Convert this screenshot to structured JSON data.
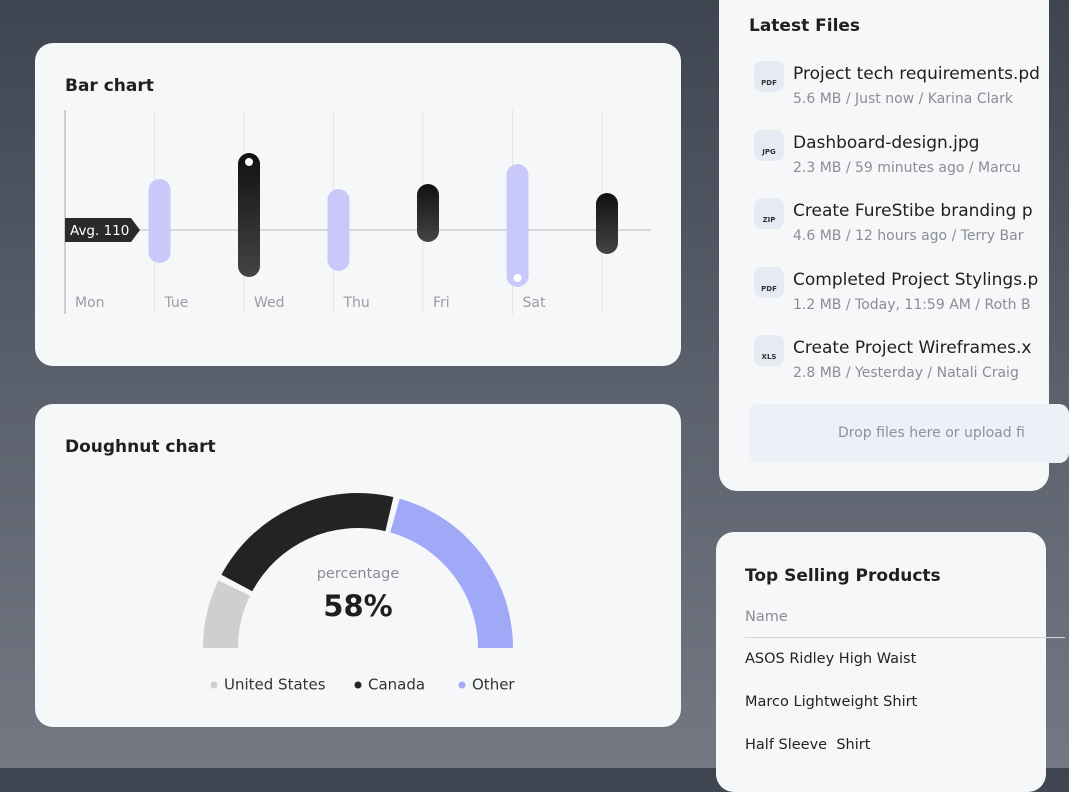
{
  "chart_data": [
    {
      "type": "rangebar",
      "title": "Bar chart",
      "categories": [
        "Mon",
        "Tue",
        "Wed",
        "Thu",
        "Fri",
        "Sat",
        null
      ],
      "low": [
        null,
        77,
        63,
        69,
        98,
        53,
        86
      ],
      "high": [
        null,
        161,
        187,
        151,
        156,
        176,
        147
      ],
      "colors": [
        null,
        "#c9c8fb",
        "#2a2a2a",
        "#c9c8fb",
        "#2a2a2a",
        "#c9c8fb",
        "#2a2a2a"
      ],
      "ylim": [
        50,
        230
      ],
      "grid": true,
      "avg": {
        "value": 110,
        "label": "Avg. 110"
      }
    },
    {
      "type": "doughnut",
      "title": "Doughnut chart",
      "categories": [
        "United States",
        "Canada",
        "Other"
      ],
      "values": [
        15,
        43,
        42
      ],
      "colors": [
        "#cfcfcf",
        "#232323",
        "#a0a8f8"
      ],
      "center_label": "percentage",
      "center_text": "58%"
    }
  ],
  "files": {
    "title": "Latest Files",
    "items": [
      {
        "icon": "PDF",
        "name": "Project tech requirements.pd",
        "meta": "5.6 MB / Just now / Karina Clark"
      },
      {
        "icon": "JPG",
        "name": "Dashboard-design.jpg",
        "meta": "2.3 MB / 59 minutes ago / Marcu"
      },
      {
        "icon": "ZIP",
        "name": "Create FureStibe branding p",
        "meta": "4.6 MB / 12 hours ago / Terry Bar"
      },
      {
        "icon": "PDF",
        "name": "Completed Project Stylings.p",
        "meta": "1.2 MB / Today, 11:59 AM / Roth B"
      },
      {
        "icon": "XLS",
        "name": "Create Project Wireframes.x",
        "meta": "2.8 MB / Yesterday / Natali Craig"
      }
    ],
    "drop": "Drop files here or upload fi"
  },
  "products": {
    "title": "Top Selling Products",
    "header": "Name",
    "rows": [
      "ASOS Ridley High Waist",
      "Marco Lightweight Shirt",
      "Half Sleeve  Shirt"
    ]
  }
}
